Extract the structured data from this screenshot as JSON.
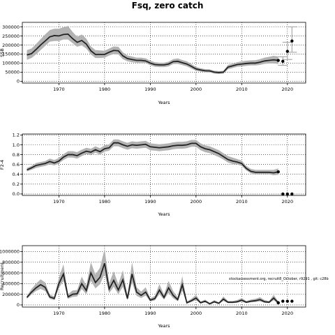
{
  "title": "Fsq, zero catch",
  "chart_data": [
    {
      "type": "line",
      "xlabel": "Years",
      "ylabel": "SSB",
      "xlim": [
        1962,
        2024
      ],
      "ylim": [
        -10000,
        325000
      ],
      "xticks": [
        1970,
        1980,
        1990,
        2000,
        2010,
        2020
      ],
      "yticks": [
        0,
        50000,
        100000,
        150000,
        200000,
        250000,
        300000
      ],
      "ytick_labels": [
        "0",
        "50000",
        "100000",
        "150000",
        "200000",
        "250000",
        "300000"
      ],
      "grid": true,
      "x": [
        1963,
        1964,
        1965,
        1966,
        1967,
        1968,
        1969,
        1970,
        1971,
        1972,
        1973,
        1974,
        1975,
        1976,
        1977,
        1978,
        1979,
        1980,
        1981,
        1982,
        1983,
        1984,
        1985,
        1986,
        1987,
        1988,
        1989,
        1990,
        1991,
        1992,
        1993,
        1994,
        1995,
        1996,
        1997,
        1998,
        1999,
        2000,
        2001,
        2002,
        2003,
        2004,
        2005,
        2006,
        2007,
        2008,
        2009,
        2010,
        2011,
        2012,
        2013,
        2014,
        2015,
        2016,
        2017,
        2018
      ],
      "values": [
        145000,
        152000,
        175000,
        200000,
        222000,
        245000,
        252000,
        250000,
        258000,
        260000,
        235000,
        215000,
        225000,
        205000,
        168000,
        148000,
        148000,
        148000,
        160000,
        170000,
        168000,
        140000,
        125000,
        120000,
        115000,
        115000,
        112000,
        100000,
        92000,
        90000,
        90000,
        95000,
        108000,
        110000,
        102000,
        95000,
        82000,
        68000,
        62000,
        58000,
        57000,
        50000,
        48000,
        50000,
        78000,
        85000,
        92000,
        95000,
        98000,
        100000,
        100000,
        105000,
        112000,
        115000,
        118000,
        115000
      ],
      "lower": [
        118000,
        128000,
        148000,
        172000,
        195000,
        218000,
        222000,
        222000,
        230000,
        230000,
        210000,
        190000,
        198000,
        180000,
        148000,
        128000,
        128000,
        130000,
        142000,
        150000,
        148000,
        122000,
        110000,
        105000,
        102000,
        102000,
        100000,
        88000,
        80000,
        78000,
        78000,
        82000,
        95000,
        96000,
        89000,
        82000,
        70000,
        58000,
        53000,
        50000,
        49000,
        42000,
        40000,
        42000,
        66000,
        73000,
        80000,
        82000,
        85000,
        87000,
        87000,
        90000,
        96000,
        98000,
        99000,
        95000
      ],
      "upper": [
        172000,
        180000,
        205000,
        232000,
        258000,
        282000,
        290000,
        290000,
        298000,
        305000,
        272000,
        245000,
        258000,
        235000,
        192000,
        172000,
        170000,
        168000,
        180000,
        192000,
        190000,
        160000,
        142000,
        137000,
        130000,
        130000,
        126000,
        113000,
        105000,
        102000,
        102000,
        108000,
        122000,
        126000,
        117000,
        110000,
        95000,
        79000,
        72000,
        67000,
        66000,
        58000,
        56000,
        58000,
        90000,
        97000,
        105000,
        110000,
        113000,
        115000,
        116000,
        122000,
        130000,
        135000,
        140000,
        137000
      ],
      "projection": {
        "x": [
          2019,
          2020,
          2021
        ],
        "values": [
          110000,
          165000,
          222000
        ],
        "lower": [
          88000,
          120000,
          160000
        ],
        "upper": [
          135000,
          215000,
          300000
        ]
      }
    },
    {
      "type": "line",
      "xlabel": "Years",
      "ylabel": "F2-4",
      "xlim": [
        1962,
        2024
      ],
      "ylim": [
        -0.03,
        1.22
      ],
      "xticks": [
        1970,
        1980,
        1990,
        2000,
        2010,
        2020
      ],
      "yticks": [
        0.0,
        0.2,
        0.4,
        0.6,
        0.8,
        1.0,
        1.2
      ],
      "ytick_labels": [
        "0.0",
        "0.2",
        "0.4",
        "0.6",
        "0.8",
        "1.0",
        "1.2"
      ],
      "grid": true,
      "x": [
        1963,
        1964,
        1965,
        1966,
        1967,
        1968,
        1969,
        1970,
        1971,
        1972,
        1973,
        1974,
        1975,
        1976,
        1977,
        1978,
        1979,
        1980,
        1981,
        1982,
        1983,
        1984,
        1985,
        1986,
        1987,
        1988,
        1989,
        1990,
        1991,
        1992,
        1993,
        1994,
        1995,
        1996,
        1997,
        1998,
        1999,
        2000,
        2001,
        2002,
        2003,
        2004,
        2005,
        2006,
        2007,
        2008,
        2009,
        2010,
        2011,
        2012,
        2013,
        2014,
        2015,
        2016,
        2017,
        2018
      ],
      "values": [
        0.49,
        0.53,
        0.58,
        0.6,
        0.62,
        0.66,
        0.63,
        0.67,
        0.75,
        0.8,
        0.8,
        0.78,
        0.83,
        0.87,
        0.85,
        0.9,
        0.86,
        0.92,
        0.94,
        1.04,
        1.04,
        1.0,
        0.97,
        1.0,
        0.99,
        1.0,
        1.01,
        0.96,
        0.95,
        0.94,
        0.95,
        0.96,
        0.98,
        0.99,
        0.99,
        1.0,
        1.03,
        1.03,
        0.96,
        0.92,
        0.9,
        0.86,
        0.82,
        0.76,
        0.7,
        0.67,
        0.65,
        0.62,
        0.52,
        0.46,
        0.44,
        0.44,
        0.44,
        0.44,
        0.43,
        0.45
      ],
      "lower": [
        0.46,
        0.49,
        0.53,
        0.55,
        0.57,
        0.6,
        0.58,
        0.62,
        0.69,
        0.74,
        0.74,
        0.72,
        0.77,
        0.81,
        0.79,
        0.84,
        0.8,
        0.86,
        0.88,
        0.97,
        0.97,
        0.93,
        0.9,
        0.93,
        0.92,
        0.93,
        0.94,
        0.89,
        0.88,
        0.87,
        0.88,
        0.89,
        0.91,
        0.92,
        0.92,
        0.93,
        0.96,
        0.96,
        0.89,
        0.85,
        0.83,
        0.79,
        0.75,
        0.7,
        0.64,
        0.61,
        0.6,
        0.57,
        0.48,
        0.42,
        0.4,
        0.4,
        0.4,
        0.4,
        0.38,
        0.39
      ],
      "upper": [
        0.53,
        0.57,
        0.63,
        0.65,
        0.67,
        0.72,
        0.69,
        0.73,
        0.81,
        0.87,
        0.87,
        0.85,
        0.9,
        0.94,
        0.92,
        0.97,
        0.93,
        0.99,
        1.01,
        1.11,
        1.11,
        1.07,
        1.04,
        1.07,
        1.06,
        1.07,
        1.08,
        1.03,
        1.02,
        1.01,
        1.02,
        1.03,
        1.05,
        1.06,
        1.06,
        1.07,
        1.1,
        1.1,
        1.03,
        0.99,
        0.97,
        0.93,
        0.89,
        0.83,
        0.77,
        0.74,
        0.71,
        0.68,
        0.57,
        0.51,
        0.49,
        0.49,
        0.49,
        0.49,
        0.49,
        0.52
      ],
      "projection": {
        "x": [
          2019,
          2020,
          2021
        ],
        "values": [
          0,
          0,
          0
        ],
        "lower": [
          0,
          0,
          0
        ],
        "upper": [
          0,
          0,
          0
        ]
      }
    },
    {
      "type": "line",
      "xlabel": "Years",
      "ylabel": "Recruitment",
      "xlim": [
        1962,
        2024
      ],
      "ylim": [
        -40000,
        1110000
      ],
      "xticks": [
        1970,
        1980,
        1990,
        2000,
        2010,
        2020
      ],
      "yticks": [
        0,
        200000,
        400000,
        600000,
        800000,
        1000000
      ],
      "ytick_labels": [
        "0",
        "200000",
        "400000",
        "600000",
        "800000",
        "1000000"
      ],
      "grid": true,
      "annotation": "stockassessment.org, recruit8_October, r9291 , git: c28b",
      "x": [
        1963,
        1964,
        1965,
        1966,
        1967,
        1968,
        1969,
        1970,
        1971,
        1972,
        1973,
        1974,
        1975,
        1976,
        1977,
        1978,
        1979,
        1980,
        1981,
        1982,
        1983,
        1984,
        1985,
        1986,
        1987,
        1988,
        1989,
        1990,
        1991,
        1992,
        1993,
        1994,
        1995,
        1996,
        1997,
        1998,
        1999,
        2000,
        2001,
        2002,
        2003,
        2004,
        2005,
        2006,
        2007,
        2008,
        2009,
        2010,
        2011,
        2012,
        2013,
        2014,
        2015,
        2016,
        2017,
        2018
      ],
      "values": [
        140000,
        240000,
        320000,
        380000,
        330000,
        150000,
        120000,
        400000,
        580000,
        150000,
        200000,
        210000,
        400000,
        270000,
        600000,
        420000,
        520000,
        780000,
        300000,
        460000,
        280000,
        470000,
        120000,
        580000,
        240000,
        180000,
        240000,
        90000,
        120000,
        280000,
        140000,
        320000,
        180000,
        100000,
        380000,
        40000,
        80000,
        130000,
        40000,
        70000,
        20000,
        60000,
        30000,
        110000,
        50000,
        50000,
        60000,
        90000,
        50000,
        70000,
        80000,
        100000,
        60000,
        50000,
        130000,
        40000
      ],
      "lower": [
        115000,
        195000,
        260000,
        300000,
        260000,
        115000,
        90000,
        315000,
        450000,
        115000,
        150000,
        160000,
        300000,
        200000,
        450000,
        310000,
        390000,
        580000,
        220000,
        340000,
        200000,
        340000,
        85000,
        420000,
        170000,
        130000,
        175000,
        65000,
        85000,
        200000,
        100000,
        225000,
        125000,
        70000,
        265000,
        25000,
        55000,
        90000,
        25000,
        48000,
        10000,
        40000,
        18000,
        75000,
        33000,
        33000,
        40000,
        62000,
        33000,
        48000,
        55000,
        68000,
        40000,
        33000,
        88000,
        25000
      ],
      "upper": [
        170000,
        300000,
        400000,
        480000,
        420000,
        195000,
        160000,
        510000,
        760000,
        200000,
        270000,
        280000,
        530000,
        360000,
        800000,
        570000,
        700000,
        1050000,
        410000,
        630000,
        390000,
        650000,
        170000,
        800000,
        330000,
        250000,
        330000,
        125000,
        170000,
        390000,
        195000,
        450000,
        260000,
        145000,
        540000,
        65000,
        115000,
        190000,
        65000,
        100000,
        40000,
        90000,
        50000,
        160000,
        75000,
        75000,
        90000,
        130000,
        75000,
        100000,
        115000,
        145000,
        90000,
        75000,
        190000,
        65000
      ],
      "projection": {
        "x": [
          2018,
          2019,
          2020,
          2021
        ],
        "values": [
          40000,
          70000,
          70000,
          70000
        ]
      }
    }
  ]
}
